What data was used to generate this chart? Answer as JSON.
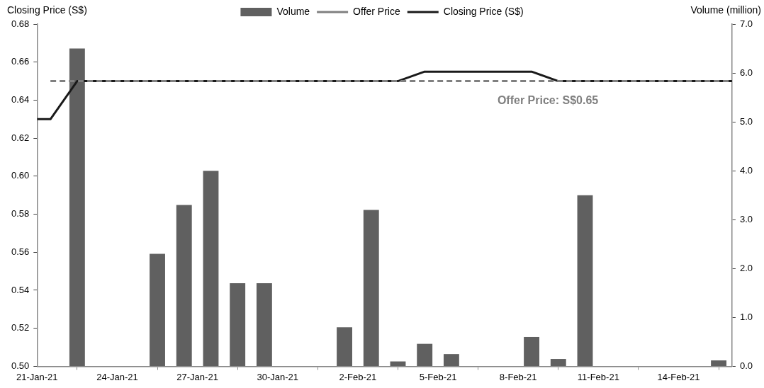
{
  "chart_data": {
    "type": "bar",
    "ylabel": "Closing Price (S$)",
    "y2label": "Volume (million)",
    "xlim": [
      "--01-21",
      "--02-16"
    ],
    "xticks": [
      {
        "value": "--01-21",
        "label": "21-Jan-21"
      },
      {
        "value": "--01-24",
        "label": "24-Jan-21"
      },
      {
        "value": "--01-27",
        "label": "27-Jan-21"
      },
      {
        "value": "--01-30",
        "label": "30-Jan-21"
      },
      {
        "value": "--02-02",
        "label": "2-Feb-21"
      },
      {
        "value": "--02-05",
        "label": "5-Feb-21"
      },
      {
        "value": "--02-08",
        "label": "8-Feb-21"
      },
      {
        "value": "--02-11",
        "label": "11-Feb-21"
      },
      {
        "value": "--02-14",
        "label": "14-Feb-21"
      }
    ],
    "ylim": [
      0.5,
      0.68
    ],
    "yticks": [
      {
        "value": 0.5,
        "label": "0.50"
      },
      {
        "value": 0.52,
        "label": "0.52"
      },
      {
        "value": 0.54,
        "label": "0.54"
      },
      {
        "value": 0.56,
        "label": "0.56"
      },
      {
        "value": 0.58,
        "label": "0.58"
      },
      {
        "value": 0.6,
        "label": "0.60"
      },
      {
        "value": 0.62,
        "label": "0.62"
      },
      {
        "value": 0.64,
        "label": "0.64"
      },
      {
        "value": 0.66,
        "label": "0.66"
      },
      {
        "value": 0.68,
        "label": "0.68"
      }
    ],
    "y2lim": [
      0,
      7
    ],
    "y2ticks": [
      {
        "value": 0,
        "label": "0.0"
      },
      {
        "value": 1,
        "label": "1.0"
      },
      {
        "value": 2,
        "label": "2.0"
      },
      {
        "value": 3,
        "label": "3.0"
      },
      {
        "value": 4,
        "label": "4.0"
      },
      {
        "value": 5,
        "label": "5.0"
      },
      {
        "value": 6,
        "label": "6.0"
      },
      {
        "value": 7,
        "label": "7.0"
      }
    ],
    "series": [
      {
        "name": "Volume",
        "axis": "y2",
        "color": "#606060",
        "x": [
          "--01-22T12:00",
          "--01-25T12:00",
          "--01-26T12:00",
          "--01-27T12:00",
          "--01-28T12:00",
          "--01-29T12:00",
          "--02-01T12:00",
          "--02-02T12:00",
          "--02-03T12:00",
          "--02-04T12:00",
          "--02-05T12:00",
          "--02-08T12:00",
          "--02-09T12:00",
          "--02-10T12:00",
          "--02-15T12:00"
        ],
        "values": [
          6.5,
          2.3,
          3.3,
          4.0,
          1.7,
          1.7,
          0.8,
          3.2,
          0.1,
          0.46,
          0.25,
          0.6,
          0.15,
          3.5,
          0.12
        ]
      },
      {
        "name": "Offer Price",
        "type": "line",
        "line_style": "dashed",
        "color": "#808080",
        "x": [
          "--01-21T12:00",
          "--02-16"
        ],
        "values": [
          0.65,
          0.65
        ]
      },
      {
        "name": "Closing Price (S$)",
        "type": "line",
        "line_style": "solid",
        "color": "#1a1a1a",
        "x": [
          "--01-21",
          "--01-21T12:00",
          "--01-22T12:00",
          "--02-03T12:00",
          "--02-04T12:00",
          "--02-08T12:00",
          "--02-09T12:00",
          "--02-16"
        ],
        "values": [
          0.63,
          0.63,
          0.65,
          0.65,
          0.655,
          0.655,
          0.65,
          0.65
        ]
      }
    ],
    "annotations": [
      "Offer Price: S$0.65"
    ],
    "legend": "top",
    "grid": false,
    "marker": "none"
  }
}
